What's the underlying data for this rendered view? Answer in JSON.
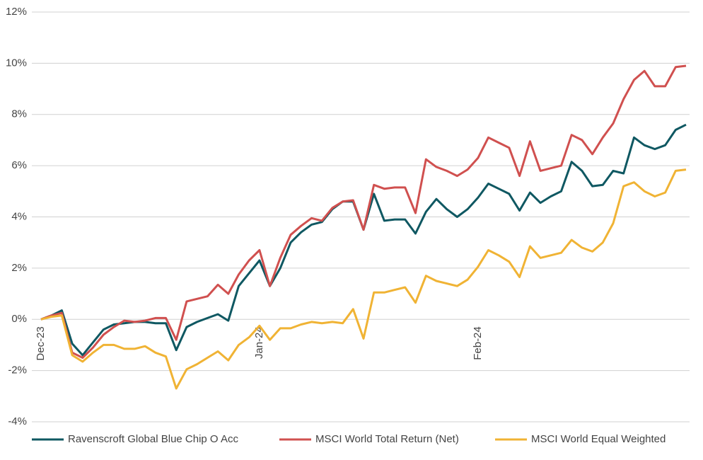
{
  "chart_data": {
    "type": "line",
    "categories": [
      "Dec-23",
      null,
      null,
      null,
      null,
      null,
      null,
      null,
      null,
      null,
      null,
      null,
      null,
      null,
      null,
      null,
      null,
      null,
      null,
      null,
      null,
      "Jan-24",
      null,
      null,
      null,
      null,
      null,
      null,
      null,
      null,
      null,
      null,
      null,
      null,
      null,
      null,
      null,
      null,
      null,
      null,
      null,
      null,
      "Feb-24",
      null,
      null,
      null,
      null,
      null,
      null,
      null,
      null,
      null,
      null,
      null,
      null,
      null,
      null,
      null,
      null,
      null,
      null,
      null,
      null
    ],
    "series": [
      {
        "name": "Ravenscroft Global Blue Chip O Acc",
        "color": "#0f5862",
        "values": [
          0,
          0.15,
          0.35,
          -0.95,
          -1.4,
          -0.9,
          -0.4,
          -0.2,
          -0.15,
          -0.1,
          -0.1,
          -0.15,
          -0.15,
          -1.2,
          -0.3,
          -0.1,
          0.05,
          0.2,
          -0.05,
          1.3,
          1.8,
          2.3,
          1.3,
          2.0,
          3.0,
          3.4,
          3.7,
          3.8,
          4.3,
          4.6,
          4.6,
          3.5,
          4.9,
          3.85,
          3.9,
          3.9,
          3.35,
          4.2,
          4.7,
          4.3,
          4.0,
          4.3,
          4.75,
          5.3,
          5.1,
          4.9,
          4.25,
          4.95,
          4.55,
          4.8,
          5.0,
          6.15,
          5.8,
          5.2,
          5.25,
          5.8,
          5.7,
          7.1,
          6.8,
          6.65,
          6.8,
          7.4,
          7.6
        ]
      },
      {
        "name": "MSCI World Total Return (Net)",
        "color": "#d0504f",
        "values": [
          0,
          0.15,
          0.25,
          -1.3,
          -1.5,
          -1.1,
          -0.6,
          -0.3,
          -0.05,
          -0.1,
          -0.05,
          0.05,
          0.05,
          -0.8,
          0.7,
          0.8,
          0.9,
          1.35,
          1.0,
          1.75,
          2.3,
          2.7,
          1.3,
          2.4,
          3.3,
          3.65,
          3.95,
          3.85,
          4.35,
          4.6,
          4.65,
          3.5,
          5.25,
          5.1,
          5.15,
          5.15,
          4.15,
          6.25,
          5.95,
          5.8,
          5.6,
          5.85,
          6.3,
          7.1,
          6.9,
          6.7,
          5.6,
          6.95,
          5.8,
          5.9,
          6.0,
          7.2,
          7.0,
          6.45,
          7.1,
          7.65,
          8.6,
          9.35,
          9.7,
          9.1,
          9.1,
          9.85,
          9.9
        ]
      },
      {
        "name": "MSCI World Equal Weighted",
        "color": "#f0b334",
        "values": [
          0,
          0.1,
          0.15,
          -1.4,
          -1.65,
          -1.3,
          -1.0,
          -1.0,
          -1.15,
          -1.15,
          -1.05,
          -1.3,
          -1.45,
          -2.7,
          -1.95,
          -1.75,
          -1.5,
          -1.25,
          -1.6,
          -1.0,
          -0.7,
          -0.25,
          -0.8,
          -0.35,
          -0.35,
          -0.2,
          -0.1,
          -0.15,
          -0.1,
          -0.15,
          0.4,
          -0.75,
          1.05,
          1.05,
          1.15,
          1.25,
          0.65,
          1.7,
          1.5,
          1.4,
          1.3,
          1.55,
          2.05,
          2.7,
          2.5,
          2.25,
          1.65,
          2.85,
          2.4,
          2.5,
          2.6,
          3.1,
          2.8,
          2.65,
          3.0,
          3.75,
          5.2,
          5.35,
          5.0,
          4.8,
          4.95,
          5.8,
          5.85
        ]
      }
    ],
    "ylim": [
      -4,
      12
    ],
    "yticks": [
      {
        "value": -4,
        "label": "-4%"
      },
      {
        "value": -2,
        "label": "-2%"
      },
      {
        "value": 0,
        "label": "0%"
      },
      {
        "value": 2,
        "label": "2%"
      },
      {
        "value": 4,
        "label": "4%"
      },
      {
        "value": 6,
        "label": "6%"
      },
      {
        "value": 8,
        "label": "8%"
      },
      {
        "value": 10,
        "label": "10%"
      },
      {
        "value": 12,
        "label": "12%"
      }
    ],
    "grid": true,
    "legend": "bottom"
  }
}
